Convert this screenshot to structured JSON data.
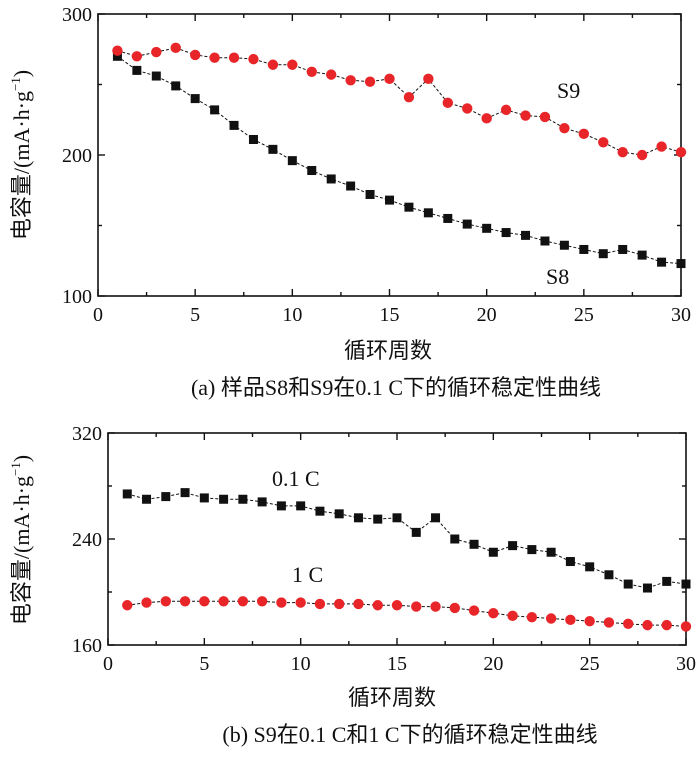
{
  "chart_data": [
    {
      "type": "line",
      "title": "",
      "caption": "(a) 样品S8和S9在0.1 C下的循环稳定性曲线",
      "xlabel": "循环周数",
      "ylabel": "电容量/(mA·h·g",
      "ylabel_sup": "−1",
      "ylabel_close": ")",
      "xlim": [
        0,
        30
      ],
      "ylim": [
        100,
        300
      ],
      "xticks": [
        "0",
        "5",
        "10",
        "15",
        "20",
        "25",
        "30"
      ],
      "yticks": [
        "100",
        "200",
        "300"
      ],
      "x": [
        1,
        2,
        3,
        4,
        5,
        6,
        7,
        8,
        9,
        10,
        11,
        12,
        13,
        14,
        15,
        16,
        17,
        18,
        19,
        20,
        21,
        22,
        23,
        24,
        25,
        26,
        27,
        28,
        29,
        30
      ],
      "series": [
        {
          "name": "S8",
          "label": "S8",
          "marker": "square",
          "color": "#111111",
          "values": [
            270,
            260,
            256,
            249,
            240,
            232,
            221,
            211,
            204,
            196,
            189,
            183,
            178,
            172,
            168,
            163,
            159,
            155,
            151,
            148,
            145,
            143,
            139,
            136,
            133,
            130,
            133,
            129,
            124,
            123
          ]
        },
        {
          "name": "S9",
          "label": "S9",
          "marker": "circle",
          "color": "#e8262a",
          "values": [
            274,
            270,
            273,
            276,
            271,
            269,
            269,
            268,
            264,
            264,
            259,
            257,
            253,
            252,
            254,
            241,
            254,
            237,
            233,
            226,
            232,
            228,
            227,
            219,
            215,
            209,
            202,
            200,
            206,
            202
          ]
        }
      ]
    },
    {
      "type": "line",
      "title": "",
      "caption": "(b) S9在0.1 C和1 C下的循环稳定性曲线",
      "xlabel": "循环周数",
      "ylabel": "电容量/(mA·h·g",
      "ylabel_sup": "−1",
      "ylabel_close": ")",
      "xlim": [
        0,
        30
      ],
      "ylim": [
        160,
        320
      ],
      "xticks": [
        "0",
        "5",
        "10",
        "15",
        "20",
        "25",
        "30"
      ],
      "yticks": [
        "160",
        "240",
        "320"
      ],
      "x": [
        1,
        2,
        3,
        4,
        5,
        6,
        7,
        8,
        9,
        10,
        11,
        12,
        13,
        14,
        15,
        16,
        17,
        18,
        19,
        20,
        21,
        22,
        23,
        24,
        25,
        26,
        27,
        28,
        29,
        30
      ],
      "series": [
        {
          "name": "0.1 C",
          "label": "0.1 C",
          "marker": "square",
          "color": "#111111",
          "values": [
            274,
            270,
            272,
            275,
            271,
            270,
            270,
            268,
            265,
            265,
            261,
            259,
            256,
            255,
            256,
            245,
            256,
            240,
            236,
            230,
            235,
            232,
            230,
            223,
            219,
            213,
            206,
            203,
            208,
            206
          ]
        },
        {
          "name": "1 C",
          "label": "1 C",
          "marker": "circle",
          "color": "#e8262a",
          "values": [
            190,
            192,
            193,
            193,
            193,
            193,
            193,
            193,
            192,
            192,
            191,
            191,
            191,
            190,
            190,
            189,
            189,
            188,
            186,
            184,
            182,
            181,
            180,
            179,
            178,
            177,
            176,
            175,
            175,
            174
          ]
        }
      ]
    }
  ]
}
